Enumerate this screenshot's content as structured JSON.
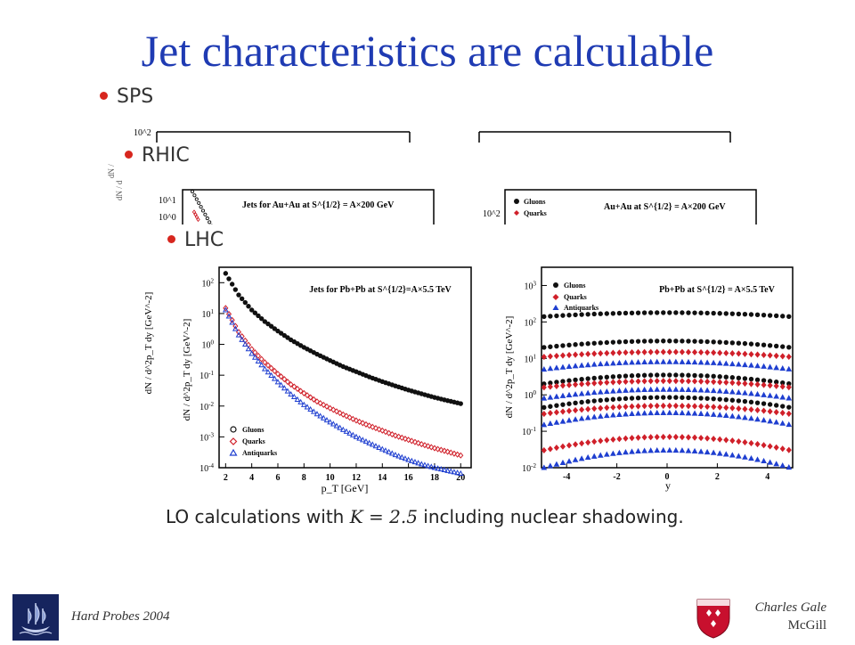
{
  "slide": {
    "title": "Jet characteristics are calculable",
    "bullets": [
      "SPS",
      "RHIC",
      "LHC"
    ],
    "caption_pre": "LO calculations with ",
    "caption_math": "K = 2.5",
    "caption_post": " including nuclear shadowing.",
    "footer_left": "Hard Probes 2004",
    "footer_author": "Charles Gale",
    "footer_affiliation": "McGill"
  },
  "colors": {
    "title": "#1f3bb3",
    "bullet": "#d7261e",
    "gluons": "#111111",
    "quarks": "#d0202a",
    "antiquarks": "#1f3fd0"
  },
  "chart_data": [
    {
      "type": "scatter",
      "panel": "SPS-left",
      "ytick_labels": [
        "10^2"
      ],
      "series": []
    },
    {
      "type": "scatter",
      "panel": "RHIC-left",
      "title": "Jets for Au+Au at S^{1/2} = A×200 GeV",
      "ytick_labels": [
        "10^1",
        "10^0"
      ],
      "series": []
    },
    {
      "type": "scatter",
      "panel": "RHIC-right",
      "title": "Au+Au at S^{1/2} = A×200 GeV",
      "ytick_labels": [
        "10^2"
      ],
      "legend": [
        "Gluons",
        "Quarks"
      ],
      "series": []
    },
    {
      "type": "scatter",
      "panel": "LHC-left",
      "title": "Jets for Pb+Pb at S^{1/2}=A×5.5 TeV",
      "xlabel": "p_T [GeV]",
      "ylabel": "dN / d^2p_T dy [GeV^-2]",
      "xticks": [
        2,
        4,
        6,
        8,
        10,
        12,
        14,
        16,
        18,
        20
      ],
      "yticks": [
        "10^2",
        "10^1",
        "10^0",
        "10^-1",
        "10^-2",
        "10^-3",
        "10^-4"
      ],
      "ylim": [
        -4,
        2.5
      ],
      "yscale": "log",
      "legend": [
        "Gluons",
        "Quarks",
        "Antiquarks"
      ],
      "legend_placement": "bottom-left",
      "x": [
        2,
        3,
        4,
        5,
        6,
        7,
        8,
        9,
        10,
        11,
        12,
        13,
        14,
        15,
        16,
        17,
        18,
        19,
        20
      ],
      "series": [
        {
          "name": "Gluons",
          "values": [
            200,
            40,
            13,
            5.5,
            2.7,
            1.4,
            0.8,
            0.48,
            0.3,
            0.19,
            0.13,
            0.088,
            0.062,
            0.045,
            0.033,
            0.025,
            0.019,
            0.015,
            0.012
          ]
        },
        {
          "name": "Quarks",
          "values": [
            15,
            2.5,
            0.7,
            0.26,
            0.11,
            0.05,
            0.026,
            0.014,
            0.0085,
            0.0053,
            0.0034,
            0.0023,
            0.0016,
            0.0011,
            0.0008,
            0.00058,
            0.00043,
            0.00033,
            0.00025
          ]
        },
        {
          "name": "Antiquarks",
          "values": [
            13,
            2.0,
            0.5,
            0.16,
            0.06,
            0.024,
            0.011,
            0.0055,
            0.003,
            0.0017,
            0.001,
            0.00063,
            0.0004,
            0.00026,
            0.00018,
            0.00013,
            0.0001,
            8e-05,
            6.5e-05
          ]
        }
      ]
    },
    {
      "type": "scatter",
      "panel": "LHC-right",
      "title": "Pb+Pb at S^{1/2} = A×5.5 TeV",
      "xlabel": "y",
      "ylabel": "dN / d^2p_T dy [GeV^-2]",
      "xticks": [
        -4,
        -2,
        0,
        2,
        4
      ],
      "yticks": [
        "10^3",
        "10^2",
        "10^1",
        "10^0",
        "10^-1",
        "10^-2"
      ],
      "ylim": [
        -2,
        3.5
      ],
      "xlim": [
        -5,
        5
      ],
      "yscale": "log",
      "legend": [
        "Gluons",
        "Quarks",
        "Antiquarks"
      ],
      "legend_placement": "top-left",
      "curves": [
        {
          "name": "Gluons",
          "center": 180,
          "edge": 140
        },
        {
          "name": "Gluons",
          "center": 30,
          "edge": 20
        },
        {
          "name": "Quarks",
          "center": 15,
          "edge": 11
        },
        {
          "name": "Antiquarks",
          "center": 8,
          "edge": 5
        },
        {
          "name": "Gluons",
          "center": 3.5,
          "edge": 2.0
        },
        {
          "name": "Quarks",
          "center": 2.4,
          "edge": 1.6
        },
        {
          "name": "Antiquarks",
          "center": 1.4,
          "edge": 0.8
        },
        {
          "name": "Gluons",
          "center": 0.85,
          "edge": 0.45
        },
        {
          "name": "Quarks",
          "center": 0.5,
          "edge": 0.3
        },
        {
          "name": "Antiquarks",
          "center": 0.32,
          "edge": 0.15
        },
        {
          "name": "Quarks",
          "center": 0.07,
          "edge": 0.03
        },
        {
          "name": "Antiquarks",
          "center": 0.03,
          "edge": 0.01
        }
      ]
    }
  ]
}
